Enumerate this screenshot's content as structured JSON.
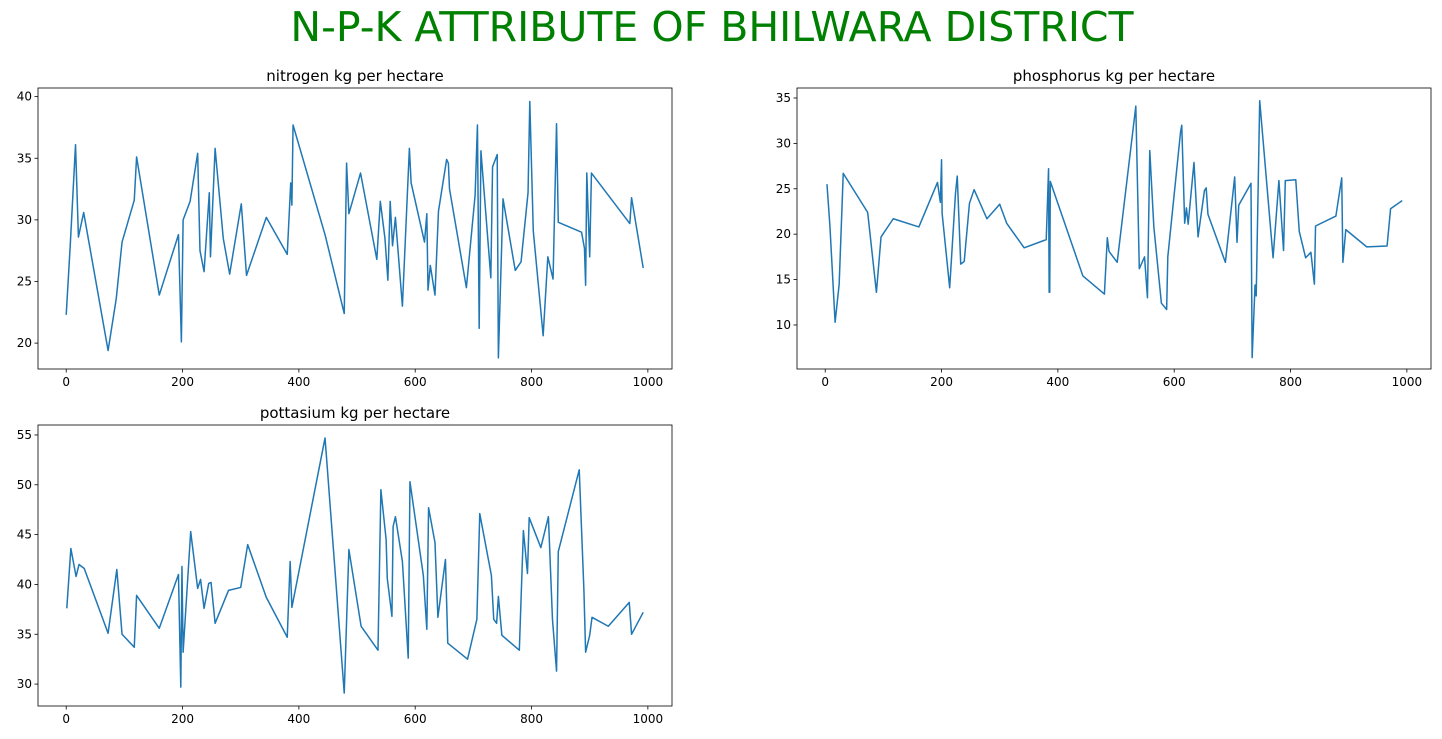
{
  "title": "N-P-K ATTRIBUTE OF BHILWARA DISTRICT",
  "title_color": "#008000",
  "chart_data": [
    {
      "type": "line",
      "title": "nitrogen kg per hectare",
      "color": "#1f77b4",
      "xlim": [
        -48.5,
        1041.5
      ],
      "ylim": [
        17.9,
        40.7
      ],
      "xticks": [
        0,
        200,
        400,
        600,
        800,
        1000
      ],
      "yticks": [
        20,
        25,
        30,
        35,
        40
      ],
      "x": [
        0,
        7,
        16,
        21,
        30,
        72,
        86,
        96,
        117,
        121,
        160,
        193,
        198,
        201,
        213,
        226,
        230,
        237,
        246,
        248,
        256,
        270,
        281,
        301,
        310,
        344,
        380,
        386,
        388,
        390,
        445,
        478,
        482,
        486,
        506,
        534,
        540,
        548,
        553,
        557,
        561,
        566,
        578,
        590,
        593,
        616,
        620,
        622,
        626,
        634,
        640,
        654,
        657,
        659,
        688,
        703,
        707,
        710,
        713,
        730,
        733,
        741,
        743,
        751,
        772,
        782,
        794,
        797,
        803,
        820,
        828,
        837,
        843,
        846,
        886,
        891,
        893,
        895,
        900,
        903,
        969,
        972,
        992
      ],
      "values": [
        22.3,
        28,
        36.1,
        28.6,
        30.6,
        19.4,
        23.6,
        28.2,
        31.6,
        35.1,
        23.9,
        28.8,
        20.1,
        30,
        31.5,
        35.4,
        27.5,
        25.8,
        32.2,
        27,
        35.8,
        28.5,
        25.6,
        31.3,
        25.5,
        30.2,
        27.2,
        33,
        31.2,
        37.7,
        28.8,
        22.4,
        34.6,
        30.5,
        33.8,
        26.8,
        31.5,
        28.5,
        25.1,
        31.5,
        27.9,
        30.2,
        23,
        35.8,
        33,
        28.2,
        30.5,
        24.3,
        26.3,
        23.9,
        30.7,
        34.9,
        34.6,
        32.5,
        24.5,
        32,
        37.7,
        21.2,
        35.6,
        25.3,
        34.3,
        35.3,
        18.8,
        31.7,
        25.9,
        26.6,
        32.2,
        39.6,
        29.1,
        20.6,
        27,
        25.2,
        37.8,
        29.8,
        29,
        27.7,
        24.7,
        33.8,
        27,
        33.8,
        29.7,
        31.8,
        26.1
      ]
    },
    {
      "type": "line",
      "title": "phosphorus kg per hectare",
      "color": "#1f77b4",
      "xlim": [
        -48.5,
        1041.5
      ],
      "ylim": [
        5.15,
        36.1
      ],
      "xticks": [
        0,
        200,
        400,
        600,
        800,
        1000
      ],
      "yticks": [
        10,
        15,
        20,
        25,
        30,
        35
      ],
      "x": [
        3,
        8,
        17,
        24,
        31,
        73,
        88,
        96,
        117,
        161,
        193,
        198,
        200,
        201,
        214,
        224,
        227,
        233,
        239,
        248,
        256,
        278,
        300,
        312,
        342,
        380,
        384,
        385,
        386,
        387,
        443,
        480,
        485,
        488,
        502,
        534,
        540,
        549,
        554,
        558,
        565,
        578,
        587,
        589,
        611,
        613,
        618,
        621,
        624,
        634,
        641,
        652,
        655,
        658,
        688,
        704,
        708,
        711,
        732,
        734,
        739,
        741,
        747,
        770,
        780,
        788,
        791,
        809,
        815,
        826,
        835,
        841,
        843,
        878,
        888,
        890,
        895,
        931,
        966,
        972,
        992
      ],
      "values": [
        25.5,
        21,
        10.3,
        14.5,
        26.7,
        22.4,
        13.6,
        19.7,
        21.7,
        20.8,
        25.7,
        23.5,
        28.2,
        22.3,
        14.1,
        24.5,
        26.4,
        16.7,
        17,
        23.4,
        24.9,
        21.7,
        23.3,
        21.2,
        18.5,
        19.4,
        27.2,
        13.6,
        13.6,
        25.8,
        15.4,
        13.4,
        19.6,
        18.1,
        16.9,
        34.1,
        16.2,
        17.5,
        13,
        29.2,
        20.8,
        12.4,
        11.7,
        17.5,
        31.3,
        32,
        21.2,
        22.9,
        21.1,
        27.9,
        19.7,
        24.8,
        25.1,
        22.2,
        16.9,
        26.3,
        19.1,
        23.2,
        25.6,
        6.4,
        14.4,
        13.2,
        34.7,
        17.4,
        25.9,
        18.2,
        25.9,
        26,
        20.3,
        17.4,
        18,
        14.5,
        20.9,
        22,
        26.2,
        16.9,
        20.5,
        18.6,
        18.7,
        22.8,
        23.7
      ]
    },
    {
      "type": "line",
      "title": "pottasium kg per hectare",
      "color": "#1f77b4",
      "xlim": [
        -48.5,
        1041.5
      ],
      "ylim": [
        27.8,
        56
      ],
      "xticks": [
        0,
        200,
        400,
        600,
        800,
        1000
      ],
      "yticks": [
        30,
        35,
        40,
        45,
        50,
        55
      ],
      "x": [
        1,
        8,
        17,
        22,
        31,
        72,
        87,
        96,
        117,
        121,
        160,
        193,
        197,
        199,
        201,
        214,
        226,
        231,
        237,
        245,
        249,
        256,
        279,
        300,
        312,
        344,
        380,
        385,
        388,
        445,
        478,
        486,
        507,
        536,
        541,
        550,
        552,
        560,
        562,
        566,
        578,
        588,
        591,
        614,
        620,
        623,
        634,
        639,
        652,
        656,
        690,
        706,
        711,
        731,
        735,
        740,
        743,
        749,
        779,
        786,
        793,
        796,
        816,
        829,
        836,
        843,
        846,
        882,
        890,
        893,
        900,
        904,
        932,
        968,
        972,
        992
      ],
      "values": [
        37.6,
        43.6,
        40.8,
        42,
        41.6,
        35.1,
        41.5,
        35,
        33.7,
        38.9,
        35.6,
        41,
        29.7,
        41.8,
        33.2,
        45.3,
        39.6,
        40.5,
        37.6,
        40.1,
        40.2,
        36.1,
        39.4,
        39.7,
        44,
        38.7,
        34.7,
        42.3,
        37.7,
        54.7,
        29.1,
        43.5,
        35.8,
        33.4,
        49.5,
        44.5,
        40.6,
        36.8,
        45.8,
        46.8,
        42.3,
        32.6,
        50.3,
        40.9,
        35.5,
        47.7,
        44.2,
        36.7,
        42.5,
        34.1,
        32.5,
        36.5,
        47.1,
        40.9,
        36.5,
        36.1,
        38.8,
        34.9,
        33.4,
        45.4,
        41.1,
        46.7,
        43.7,
        46.8,
        36.5,
        31.3,
        43.3,
        51.5,
        39.5,
        33.2,
        34.9,
        36.7,
        35.8,
        38.2,
        35,
        37.2
      ]
    }
  ]
}
